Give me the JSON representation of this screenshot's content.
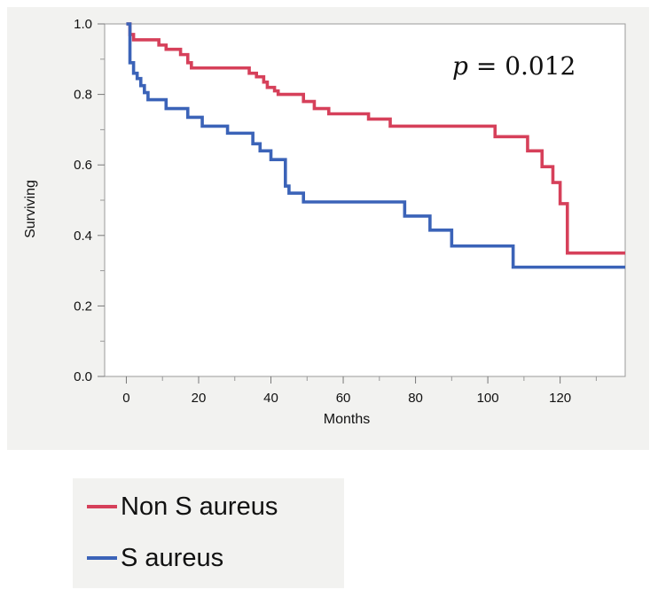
{
  "chart_data": {
    "type": "line",
    "step": true,
    "xlabel": "Months",
    "ylabel": "Surviving",
    "xlim": [
      -6,
      138
    ],
    "ylim": [
      0,
      1
    ],
    "xticks": [
      0,
      20,
      40,
      60,
      80,
      100,
      120
    ],
    "xtick_labels": [
      "0",
      "20",
      "40",
      "60",
      "80",
      "100",
      "120"
    ],
    "yticks": [
      0,
      0.2,
      0.4,
      0.6,
      0.8,
      1.0
    ],
    "ytick_labels": [
      "0.0",
      "0.2",
      "0.4",
      "0.6",
      "0.8",
      "1.0"
    ],
    "grid": false,
    "annotation": {
      "italic": "p",
      "rest": " = 0.012"
    },
    "series": [
      {
        "name": "Non S aureus",
        "color": "#d6405a",
        "x": [
          0,
          1,
          2,
          9,
          11,
          15,
          17,
          18,
          34,
          36,
          38,
          39,
          41,
          42,
          49,
          52,
          56,
          67,
          73,
          102,
          111,
          115,
          118,
          120,
          122,
          138
        ],
        "y": [
          1.0,
          0.97,
          0.955,
          0.94,
          0.928,
          0.913,
          0.89,
          0.875,
          0.86,
          0.85,
          0.835,
          0.82,
          0.81,
          0.8,
          0.78,
          0.76,
          0.745,
          0.73,
          0.71,
          0.68,
          0.64,
          0.595,
          0.55,
          0.49,
          0.35,
          0.35
        ]
      },
      {
        "name": "S aureus",
        "color": "#3b63b8",
        "x": [
          0,
          1,
          2,
          3,
          4,
          5,
          6,
          11,
          17,
          21,
          28,
          35,
          37,
          40,
          44,
          45,
          49,
          77,
          84,
          90,
          107,
          138
        ],
        "y": [
          1.0,
          0.89,
          0.86,
          0.845,
          0.825,
          0.805,
          0.785,
          0.76,
          0.735,
          0.71,
          0.69,
          0.66,
          0.64,
          0.615,
          0.54,
          0.52,
          0.495,
          0.455,
          0.415,
          0.37,
          0.31,
          0.31
        ]
      }
    ]
  },
  "legend": {
    "items": [
      {
        "label": "Non S aureus",
        "color": "#d6405a"
      },
      {
        "label": "S aureus",
        "color": "#3b63b8"
      }
    ]
  }
}
